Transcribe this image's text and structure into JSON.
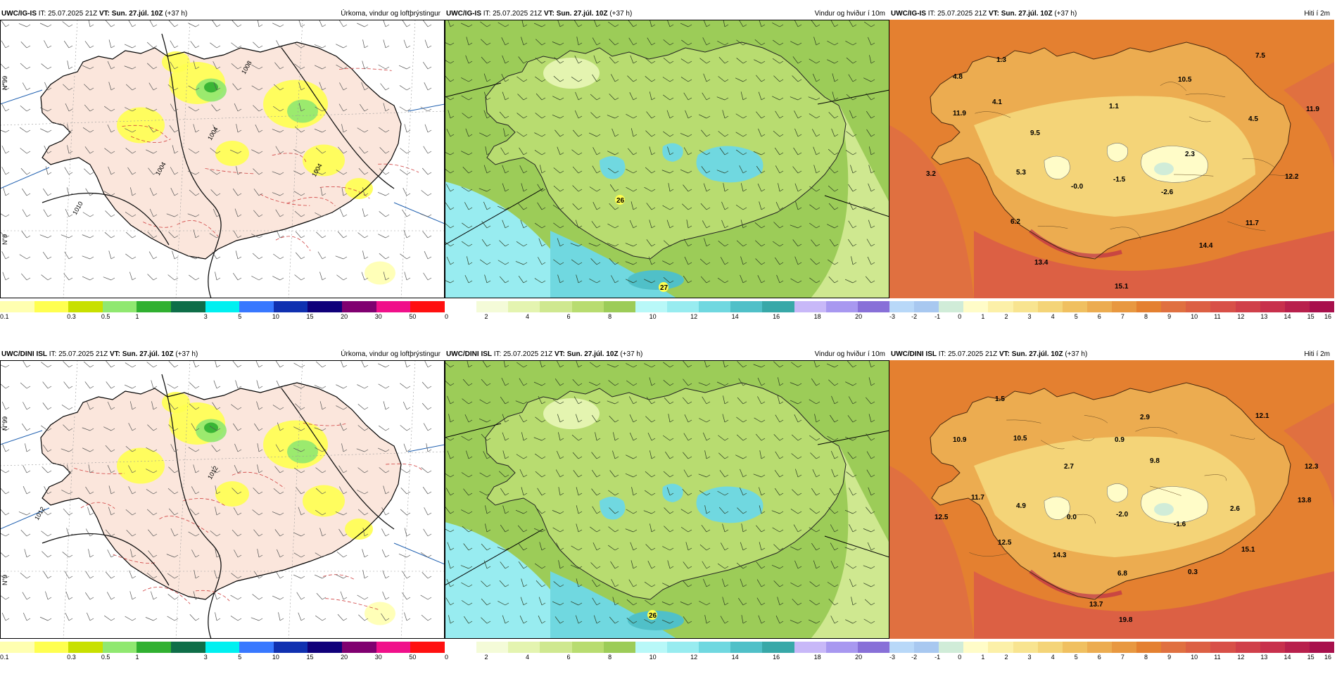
{
  "rows": [
    {
      "model": "UWC/IG-IS",
      "panels": [
        {
          "kind": "precip",
          "title": "Úrkoma, vindur og loftþrýstingur",
          "pressure_labels": [
            "1004",
            "1008",
            "1010",
            "1004",
            "1004"
          ]
        },
        {
          "kind": "wind",
          "title": "Vindur og hviður í 10m",
          "gust_labels": [
            "26",
            "27"
          ]
        },
        {
          "kind": "temp",
          "title": "Hiti í 2m",
          "temp_labels": [
            "4.8",
            "1.3",
            "7.5",
            "10.5",
            "11.9",
            "4.1",
            "1.1",
            "4.5",
            "11.9",
            "9.5",
            "2.3",
            "3.2",
            "5.3",
            "-0.0",
            "-1.5",
            "-2.6",
            "12.2",
            "6.2",
            "11.7",
            "14.4",
            "13.4",
            "15.1"
          ]
        }
      ]
    },
    {
      "model": "UWC/DINI ISL",
      "panels": [
        {
          "kind": "precip",
          "title": "Úrkoma, vindur og loftþrýstingur",
          "pressure_labels": [
            "1012",
            "1012"
          ]
        },
        {
          "kind": "wind",
          "title": "Vindur og hviður í 10m",
          "gust_labels": [
            "26"
          ]
        },
        {
          "kind": "temp",
          "title": "Hiti í 2m",
          "temp_labels": [
            "1.5",
            "2.9",
            "12.1",
            "10.9",
            "10.5",
            "0.9",
            "9.8",
            "2.7",
            "12.3",
            "11.7",
            "4.9",
            "0.0",
            "-2.0",
            "-1.6",
            "2.6",
            "13.8",
            "12.5",
            "12.5",
            "14.3",
            "6.8",
            "0.3",
            "15.1",
            "13.7",
            "19.8"
          ]
        }
      ]
    }
  ],
  "header": {
    "it_label": "IT:",
    "it_value": "25.07.2025 21Z",
    "vt_label": "VT:",
    "vt_value": "Sun. 27.júl. 10Z",
    "lead": "(+37 h)"
  },
  "graticule_labels": [
    "N°99",
    "N°9",
    "N°9",
    "N99"
  ],
  "legends": {
    "precip": {
      "colors": [
        "#ffffb0",
        "#ffff50",
        "#c8e000",
        "#90e870",
        "#30b030",
        "#0e6e48",
        "#00f0f0",
        "#3878ff",
        "#1030b0",
        "#10007a",
        "#800070",
        "#f0108a",
        "#ff1010"
      ],
      "ticks": [
        "0.1",
        "0.3",
        "0.5",
        "1",
        "3",
        "5",
        "10",
        "15",
        "20",
        "30",
        "50"
      ]
    },
    "wind": {
      "colors": [
        "#ffffff",
        "#f4fbd8",
        "#e4f4b0",
        "#cfe890",
        "#b8dc70",
        "#9ccc58",
        "#b8f8f8",
        "#98ecf0",
        "#70d8e0",
        "#50c0c8",
        "#38a8a8",
        "#c8b8f8",
        "#a898f0",
        "#8870d8"
      ],
      "ticks": [
        "0",
        "2",
        "4",
        "6",
        "8",
        "10",
        "12",
        "14",
        "16",
        "18",
        "20"
      ]
    },
    "temp": {
      "colors": [
        "#b8d8f8",
        "#a8c8f0",
        "#d0ecd8",
        "#fffcc8",
        "#fcf0a8",
        "#f8e490",
        "#f4d478",
        "#f0c060",
        "#ecac50",
        "#e89840",
        "#e48030",
        "#e07040",
        "#dc6044",
        "#d85048",
        "#d0404a",
        "#c8304c",
        "#b8204c",
        "#a8104c"
      ],
      "ticks": [
        "-3",
        "-2",
        "-1",
        "0",
        "1",
        "2",
        "3",
        "4",
        "5",
        "6",
        "7",
        "8",
        "9",
        "10",
        "11",
        "12",
        "13",
        "14",
        "15",
        "16"
      ]
    }
  }
}
